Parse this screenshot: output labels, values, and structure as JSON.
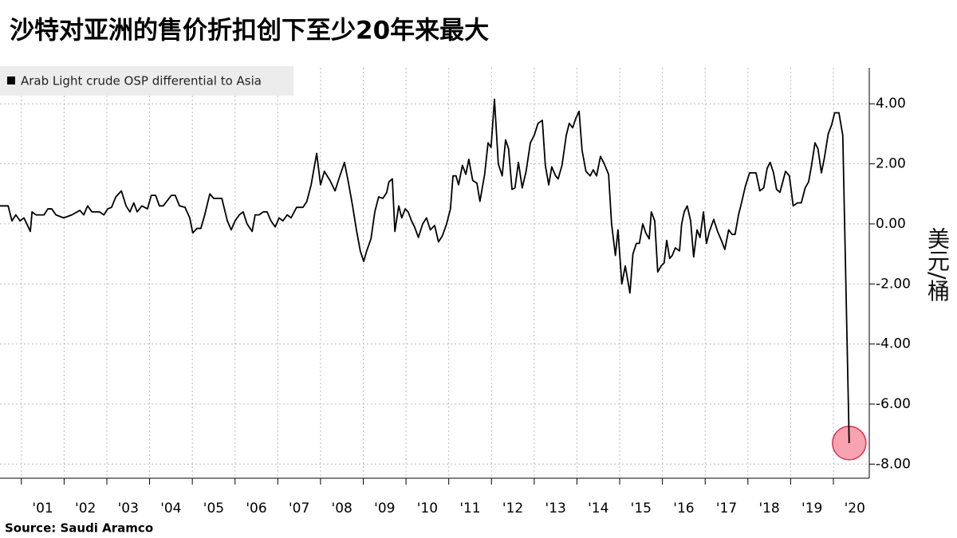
{
  "chart_data": {
    "type": "line",
    "title": "沙特对亚洲的售价折扣创下至少20年来最大",
    "source": "Source:  Saudi Aramco",
    "y_axis_label": "美元/桶",
    "legend": "top-left",
    "grid": true,
    "xlim": [
      2000.5,
      2020.84
    ],
    "ylim": [
      -8.47,
      5.2
    ],
    "xticks": [
      {
        "value": 2001,
        "label": "'01"
      },
      {
        "value": 2002,
        "label": "'02"
      },
      {
        "value": 2003,
        "label": "'03"
      },
      {
        "value": 2004,
        "label": "'04"
      },
      {
        "value": 2005,
        "label": "'05"
      },
      {
        "value": 2006,
        "label": "'06"
      },
      {
        "value": 2007,
        "label": "'07"
      },
      {
        "value": 2008,
        "label": "'08"
      },
      {
        "value": 2009,
        "label": "'09"
      },
      {
        "value": 2010,
        "label": "'10"
      },
      {
        "value": 2011,
        "label": "'11"
      },
      {
        "value": 2012,
        "label": "'12"
      },
      {
        "value": 2013,
        "label": "'13"
      },
      {
        "value": 2014,
        "label": "'14"
      },
      {
        "value": 2015,
        "label": "'15"
      },
      {
        "value": 2016,
        "label": "'16"
      },
      {
        "value": 2017,
        "label": "'17"
      },
      {
        "value": 2018,
        "label": "'18"
      },
      {
        "value": 2019,
        "label": "'19"
      },
      {
        "value": 2020,
        "label": "'20"
      }
    ],
    "yticks": [
      {
        "value": 4,
        "label": "4.00"
      },
      {
        "value": 2,
        "label": "2.00"
      },
      {
        "value": 0,
        "label": "0.00"
      },
      {
        "value": -2,
        "label": "-2.00"
      },
      {
        "value": -4,
        "label": "-4.00"
      },
      {
        "value": -6,
        "label": "-6.00"
      },
      {
        "value": -8,
        "label": "-8.00"
      }
    ],
    "x": [
      2000.5,
      2000.69,
      2000.78,
      2000.87,
      2000.97,
      2001.06,
      2001.21,
      2001.25,
      2001.34,
      2001.53,
      2001.62,
      2001.71,
      2001.81,
      2001.99,
      2002.18,
      2002.37,
      2002.46,
      2002.55,
      2002.65,
      2002.83,
      2002.93,
      2003.02,
      2003.11,
      2003.21,
      2003.34,
      2003.45,
      2003.54,
      2003.63,
      2003.71,
      2003.82,
      2003.95,
      2004.04,
      2004.14,
      2004.23,
      2004.32,
      2004.51,
      2004.6,
      2004.7,
      2004.83,
      2004.94,
      2005.01,
      2005.11,
      2005.2,
      2005.29,
      2005.41,
      2005.5,
      2005.69,
      2005.82,
      2005.91,
      2006.0,
      2006.1,
      2006.19,
      2006.28,
      2006.4,
      2006.47,
      2006.56,
      2006.66,
      2006.75,
      2006.84,
      2006.94,
      2007.03,
      2007.12,
      2007.22,
      2007.31,
      2007.44,
      2007.59,
      2007.68,
      2007.78,
      2007.91,
      2008.0,
      2008.09,
      2008.22,
      2008.34,
      2008.43,
      2008.56,
      2008.65,
      2008.75,
      2008.84,
      2008.93,
      2009.01,
      2009.08,
      2009.18,
      2009.27,
      2009.36,
      2009.46,
      2009.55,
      2009.6,
      2009.68,
      2009.74,
      2009.83,
      2009.9,
      2009.98,
      2010.05,
      2010.13,
      2010.2,
      2010.29,
      2010.39,
      2010.48,
      2010.57,
      2010.67,
      2010.76,
      2010.85,
      2010.95,
      2011.04,
      2011.1,
      2011.17,
      2011.23,
      2011.32,
      2011.4,
      2011.47,
      2011.56,
      2011.66,
      2011.73,
      2011.84,
      2011.92,
      2011.99,
      2012.07,
      2012.16,
      2012.25,
      2012.33,
      2012.4,
      2012.48,
      2012.55,
      2012.63,
      2012.72,
      2012.81,
      2012.91,
      2013.0,
      2013.09,
      2013.19,
      2013.26,
      2013.34,
      2013.41,
      2013.5,
      2013.56,
      2013.65,
      2013.75,
      2013.82,
      2013.9,
      2013.97,
      2014.05,
      2014.12,
      2014.21,
      2014.31,
      2014.38,
      2014.46,
      2014.55,
      2014.64,
      2014.74,
      2014.81,
      2014.9,
      2014.96,
      2015.05,
      2015.13,
      2015.24,
      2015.31,
      2015.39,
      2015.46,
      2015.54,
      2015.61,
      2015.69,
      2015.74,
      2015.82,
      2015.89,
      2015.97,
      2016.04,
      2016.1,
      2016.17,
      2016.23,
      2016.3,
      2016.4,
      2016.45,
      2016.51,
      2016.58,
      2016.66,
      2016.73,
      2016.81,
      2016.88,
      2016.96,
      2017.03,
      2017.1,
      2017.2,
      2017.29,
      2017.38,
      2017.46,
      2017.55,
      2017.63,
      2017.7,
      2017.78,
      2017.85,
      2017.94,
      2018.04,
      2018.19,
      2018.28,
      2018.37,
      2018.45,
      2018.52,
      2018.6,
      2018.67,
      2018.75,
      2018.88,
      2018.97,
      2019.06,
      2019.16,
      2019.25,
      2019.34,
      2019.42,
      2019.49,
      2019.57,
      2019.64,
      2019.72,
      2019.79,
      2019.88,
      2019.96,
      2020.03,
      2020.13,
      2020.22,
      2020.37
    ],
    "series": [
      {
        "name": "Arab Light crude OSP differential to Asia",
        "color": "#000000",
        "values": [
          0.6,
          0.6,
          0.1,
          0.3,
          0.1,
          0.2,
          -0.25,
          0.4,
          0.3,
          0.3,
          0.5,
          0.5,
          0.3,
          0.2,
          0.3,
          0.45,
          0.3,
          0.6,
          0.4,
          0.4,
          0.3,
          0.5,
          0.55,
          0.9,
          1.1,
          0.6,
          0.4,
          0.7,
          0.4,
          0.6,
          0.5,
          0.95,
          0.95,
          0.6,
          0.6,
          0.95,
          0.95,
          0.6,
          0.55,
          0.2,
          -0.3,
          -0.15,
          -0.15,
          0.3,
          1.0,
          0.85,
          0.85,
          0.1,
          -0.2,
          0.1,
          0.3,
          0.4,
          0.0,
          -0.25,
          0.3,
          0.3,
          0.4,
          0.4,
          0.1,
          -0.1,
          0.2,
          0.1,
          0.3,
          0.2,
          0.55,
          0.55,
          0.75,
          1.3,
          2.35,
          1.3,
          1.75,
          1.45,
          1.1,
          1.5,
          2.05,
          1.4,
          0.6,
          -0.2,
          -0.9,
          -1.25,
          -0.9,
          -0.5,
          0.4,
          0.9,
          0.85,
          1.05,
          1.4,
          1.5,
          -0.25,
          0.6,
          0.2,
          0.5,
          0.4,
          0.1,
          -0.1,
          -0.45,
          0.0,
          0.2,
          -0.2,
          -0.05,
          -0.6,
          -0.4,
          0.0,
          0.5,
          1.6,
          1.6,
          1.3,
          1.95,
          1.65,
          2.15,
          1.45,
          1.35,
          0.75,
          1.65,
          2.7,
          2.55,
          4.15,
          2.0,
          1.6,
          2.8,
          2.5,
          1.15,
          1.2,
          2.05,
          1.2,
          1.75,
          2.7,
          2.95,
          3.35,
          3.45,
          1.95,
          1.3,
          1.9,
          1.6,
          1.5,
          1.95,
          2.95,
          3.35,
          3.2,
          3.5,
          3.75,
          2.45,
          1.75,
          1.6,
          1.8,
          1.6,
          2.25,
          2.0,
          1.65,
          0.0,
          -1.05,
          -0.2,
          -2.0,
          -1.4,
          -2.3,
          -1.0,
          -0.65,
          -0.65,
          0.0,
          -0.3,
          -0.5,
          0.4,
          0.1,
          -1.6,
          -1.4,
          -1.3,
          -0.55,
          -1.15,
          -1.05,
          -0.8,
          -0.9,
          0.0,
          0.4,
          0.6,
          0.1,
          -1.1,
          -0.2,
          -0.45,
          0.4,
          -0.65,
          -0.25,
          0.15,
          -0.25,
          -0.55,
          -0.85,
          -0.2,
          -0.35,
          -0.35,
          0.3,
          0.7,
          1.25,
          1.7,
          1.7,
          1.1,
          1.2,
          1.85,
          2.05,
          1.7,
          1.15,
          1.05,
          1.75,
          1.6,
          0.6,
          0.7,
          0.7,
          1.2,
          1.4,
          1.95,
          2.7,
          2.5,
          1.7,
          2.2,
          3.0,
          3.3,
          3.7,
          3.7,
          2.95,
          -7.3
        ]
      }
    ]
  }
}
